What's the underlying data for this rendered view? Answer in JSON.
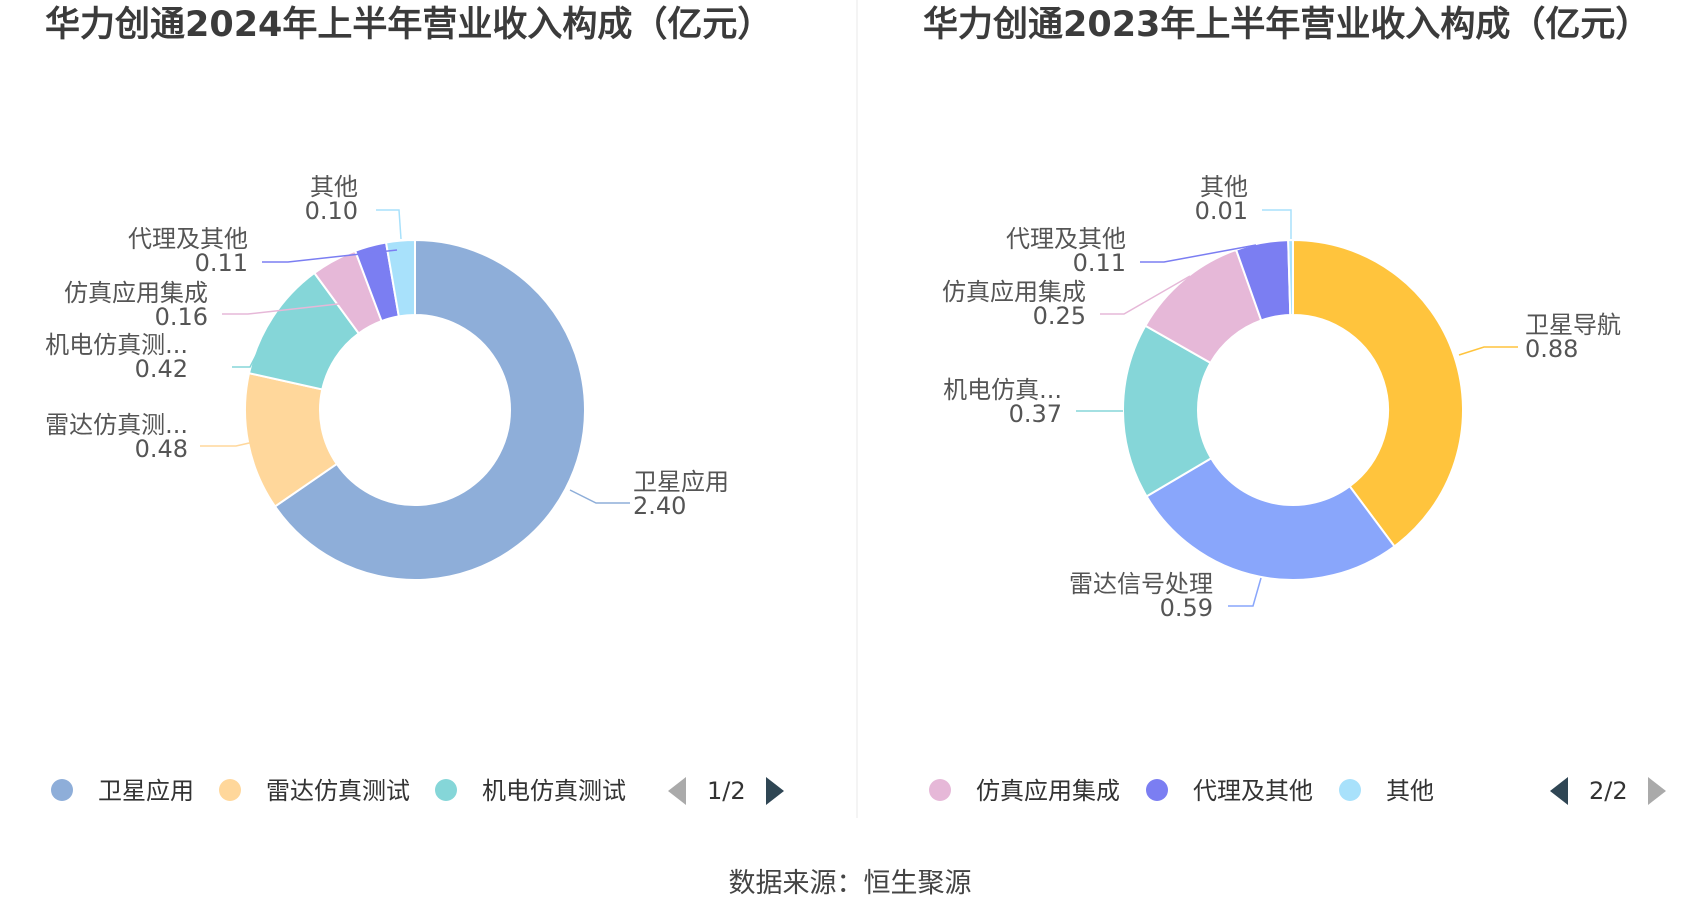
{
  "source": "数据来源：恒生聚源",
  "charts": [
    {
      "title": "华力创通2024年上半年营业收入构成（亿元）",
      "pager": {
        "text": "1/2",
        "prev_enabled": false,
        "next_enabled": true
      },
      "legend": [
        {
          "label": "卫星应用",
          "color": "#8eaed9"
        },
        {
          "label": "雷达仿真测试",
          "color": "#ffd79b"
        },
        {
          "label": "机电仿真测试",
          "color": "#85d6d8"
        }
      ],
      "slices": [
        {
          "label": "卫星应用",
          "display_label": "卫星应用",
          "value": 2.4,
          "value_text": "2.40",
          "color": "#8eaed9"
        },
        {
          "label": "雷达仿真测试",
          "display_label": "雷达仿真测...",
          "value": 0.48,
          "value_text": "0.48",
          "color": "#ffd79b"
        },
        {
          "label": "机电仿真测试",
          "display_label": "机电仿真测...",
          "value": 0.42,
          "value_text": "0.42",
          "color": "#85d6d8"
        },
        {
          "label": "仿真应用集成",
          "display_label": "仿真应用集成",
          "value": 0.16,
          "value_text": "0.16",
          "color": "#e6b8d8"
        },
        {
          "label": "代理及其他",
          "display_label": "代理及其他",
          "value": 0.11,
          "value_text": "0.11",
          "color": "#7b7ef2"
        },
        {
          "label": "其他",
          "display_label": "其他",
          "value": 0.1,
          "value_text": "0.10",
          "color": "#a8e1fb"
        }
      ]
    },
    {
      "title": "华力创通2023年上半年营业收入构成（亿元）",
      "pager": {
        "text": "2/2",
        "prev_enabled": true,
        "next_enabled": false
      },
      "legend": [
        {
          "label": "仿真应用集成",
          "color": "#e6b8d8"
        },
        {
          "label": "代理及其他",
          "color": "#7b7ef2"
        },
        {
          "label": "其他",
          "color": "#a8e1fb"
        }
      ],
      "slices": [
        {
          "label": "卫星导航",
          "display_label": "卫星导航",
          "value": 0.88,
          "value_text": "0.88",
          "color": "#ffc43d"
        },
        {
          "label": "雷达信号处理",
          "display_label": "雷达信号处理",
          "value": 0.59,
          "value_text": "0.59",
          "color": "#89a6fb"
        },
        {
          "label": "机电仿真测试",
          "display_label": "机电仿真...",
          "value": 0.37,
          "value_text": "0.37",
          "color": "#85d6d8"
        },
        {
          "label": "仿真应用集成",
          "display_label": "仿真应用集成",
          "value": 0.25,
          "value_text": "0.25",
          "color": "#e6b8d8"
        },
        {
          "label": "代理及其他",
          "display_label": "代理及其他",
          "value": 0.11,
          "value_text": "0.11",
          "color": "#7b7ef2"
        },
        {
          "label": "其他",
          "display_label": "其他",
          "value": 0.01,
          "value_text": "0.01",
          "color": "#a8e1fb"
        }
      ]
    }
  ],
  "chart_data": [
    {
      "type": "pie",
      "title": "华力创通2024年上半年营业收入构成（亿元）",
      "categories": [
        "卫星应用",
        "雷达仿真测试",
        "机电仿真测试",
        "仿真应用集成",
        "代理及其他",
        "其他"
      ],
      "values": [
        2.4,
        0.48,
        0.42,
        0.16,
        0.11,
        0.1
      ],
      "legend_position": "bottom"
    },
    {
      "type": "pie",
      "title": "华力创通2023年上半年营业收入构成（亿元）",
      "categories": [
        "卫星导航",
        "雷达信号处理",
        "机电仿真测试",
        "仿真应用集成",
        "代理及其他",
        "其他"
      ],
      "values": [
        0.88,
        0.59,
        0.37,
        0.25,
        0.11,
        0.01
      ],
      "legend_position": "bottom"
    }
  ]
}
